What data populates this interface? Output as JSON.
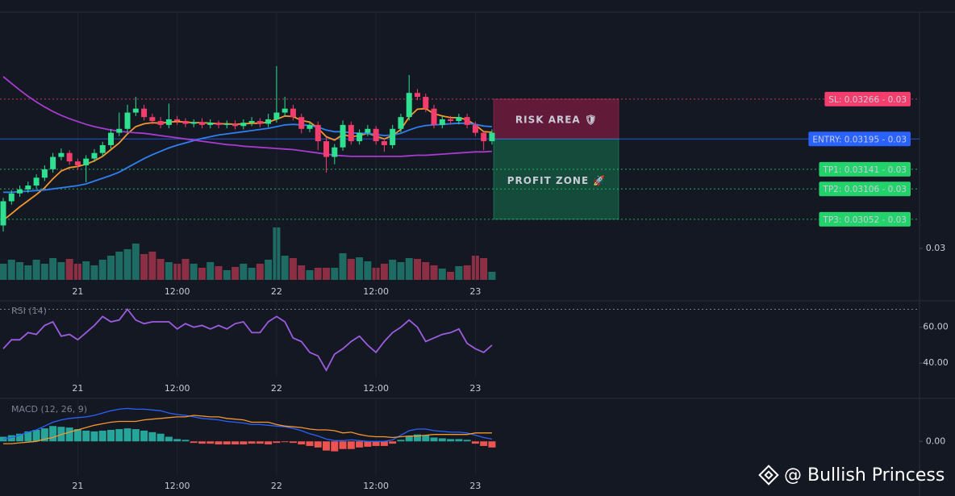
{
  "chart_data": [
    {
      "type": "candlestick",
      "categories": [
        null,
        null,
        null,
        null,
        null,
        null,
        null,
        null,
        null,
        "21",
        null,
        null,
        null,
        null,
        null,
        null,
        null,
        null,
        null,
        null,
        null,
        "12:00",
        null,
        null,
        null,
        null,
        null,
        null,
        null,
        null,
        null,
        null,
        null,
        "22",
        null,
        null,
        null,
        null,
        null,
        null,
        null,
        null,
        null,
        null,
        null,
        "12:00",
        null,
        null,
        null,
        null,
        null,
        null,
        null,
        null,
        null,
        null,
        null,
        "23",
        null,
        null
      ],
      "open": [
        0.03041,
        0.03084,
        0.03098,
        0.03105,
        0.03112,
        0.03126,
        0.03141,
        0.03163,
        0.0317,
        0.03155,
        0.03148,
        0.0316,
        0.0317,
        0.03184,
        0.03206,
        0.03213,
        0.03242,
        0.03249,
        0.03234,
        0.03227,
        0.0322,
        0.0323,
        0.03227,
        0.03222,
        0.03225,
        0.0322,
        0.03224,
        0.0322,
        0.03222,
        0.03218,
        0.03224,
        0.03227,
        0.03222,
        0.0323,
        0.03242,
        0.03249,
        0.03234,
        0.03213,
        0.0322,
        0.03191,
        0.03163,
        0.0318,
        0.0322,
        0.03191,
        0.03206,
        0.03213,
        0.03191,
        0.03184,
        0.03213,
        0.03234,
        0.03277,
        0.0327,
        0.03249,
        0.0322,
        0.0323,
        0.03227,
        0.03234,
        0.0322,
        0.03206,
        0.03191
      ],
      "high": [
        0.0309,
        0.03104,
        0.03112,
        0.03119,
        0.03132,
        0.03148,
        0.0317,
        0.03178,
        0.03175,
        0.0316,
        0.03166,
        0.03177,
        0.0319,
        0.03213,
        0.03242,
        0.03256,
        0.0327,
        0.03256,
        0.0324,
        0.03234,
        0.03258,
        0.03236,
        0.03232,
        0.0323,
        0.03232,
        0.0323,
        0.03228,
        0.03228,
        0.03228,
        0.0323,
        0.03234,
        0.03232,
        0.0324,
        0.03325,
        0.0327,
        0.03256,
        0.0324,
        0.03226,
        0.03226,
        0.03198,
        0.03186,
        0.03228,
        0.03226,
        0.03212,
        0.0322,
        0.03218,
        0.03196,
        0.0322,
        0.0324,
        0.03309,
        0.03284,
        0.03276,
        0.03256,
        0.03236,
        0.03236,
        0.0324,
        0.0324,
        0.03226,
        0.03208,
        0.03212
      ],
      "low": [
        0.0303,
        0.03078,
        0.03092,
        0.03099,
        0.03106,
        0.0312,
        0.03135,
        0.03157,
        0.03149,
        0.0314,
        0.03118,
        0.03154,
        0.03164,
        0.03178,
        0.032,
        0.03207,
        0.03236,
        0.03228,
        0.03221,
        0.03214,
        0.03214,
        0.0322,
        0.03216,
        0.03216,
        0.03214,
        0.03214,
        0.03214,
        0.03214,
        0.03212,
        0.03212,
        0.03218,
        0.03216,
        0.03216,
        0.03224,
        0.03236,
        0.03228,
        0.03205,
        0.03207,
        0.03175,
        0.03135,
        0.0315,
        0.03174,
        0.03185,
        0.03185,
        0.032,
        0.03185,
        0.03172,
        0.03178,
        0.03207,
        0.03228,
        0.03264,
        0.03243,
        0.03214,
        0.03214,
        0.03221,
        0.03221,
        0.03214,
        0.032,
        0.03175,
        0.03185
      ],
      "close": [
        0.03084,
        0.03098,
        0.03105,
        0.03112,
        0.03126,
        0.03141,
        0.03163,
        0.0317,
        0.03155,
        0.03148,
        0.0316,
        0.0317,
        0.03184,
        0.03206,
        0.03213,
        0.03242,
        0.03249,
        0.03234,
        0.03227,
        0.0322,
        0.0323,
        0.03227,
        0.03222,
        0.03225,
        0.0322,
        0.03224,
        0.0322,
        0.03222,
        0.03218,
        0.03224,
        0.03227,
        0.03222,
        0.0323,
        0.03242,
        0.03249,
        0.03234,
        0.03213,
        0.0322,
        0.03191,
        0.03163,
        0.0318,
        0.0322,
        0.03191,
        0.03206,
        0.03213,
        0.03191,
        0.03184,
        0.03213,
        0.03234,
        0.03277,
        0.0327,
        0.03249,
        0.0322,
        0.0323,
        0.03227,
        0.03234,
        0.0322,
        0.03206,
        0.03191,
        0.03206
      ],
      "up_color": "#2ee08f",
      "down_color": "#f23d6d",
      "overlays": [
        {
          "color": "#f5962f",
          "values": [
            0.0305,
            0.03062,
            0.03074,
            0.03085,
            0.03096,
            0.03108,
            0.03124,
            0.03138,
            0.03144,
            0.03146,
            0.0315,
            0.03156,
            0.03164,
            0.03176,
            0.03188,
            0.03204,
            0.03217,
            0.03222,
            0.03224,
            0.03223,
            0.03225,
            0.03226,
            0.03225,
            0.03224,
            0.03224,
            0.03223,
            0.03222,
            0.03222,
            0.03221,
            0.03222,
            0.03223,
            0.03223,
            0.03225,
            0.0323,
            0.03236,
            0.03235,
            0.03228,
            0.03225,
            0.03214,
            0.03199,
            0.03193,
            0.03203,
            0.03199,
            0.03201,
            0.03205,
            0.032,
            0.03195,
            0.03201,
            0.03212,
            0.03234,
            0.03248,
            0.03249,
            0.0324,
            0.03236,
            0.03233,
            0.03233,
            0.03229,
            0.0322,
            0.03208,
            0.03207
          ]
        },
        {
          "color": "#2f7ff0",
          "values": [
            0.031,
            0.031,
            0.03101,
            0.03102,
            0.03103,
            0.03104,
            0.03106,
            0.03108,
            0.0311,
            0.03112,
            0.03115,
            0.0312,
            0.03125,
            0.0313,
            0.03136,
            0.03144,
            0.03152,
            0.0316,
            0.03167,
            0.03173,
            0.03179,
            0.03184,
            0.03188,
            0.03192,
            0.03196,
            0.03199,
            0.03202,
            0.03204,
            0.03206,
            0.03208,
            0.0321,
            0.03212,
            0.03214,
            0.03217,
            0.0322,
            0.03221,
            0.0322,
            0.03219,
            0.03216,
            0.03211,
            0.03208,
            0.03208,
            0.03206,
            0.03205,
            0.03205,
            0.03203,
            0.03201,
            0.03202,
            0.03205,
            0.03211,
            0.03216,
            0.03219,
            0.0322,
            0.03221,
            0.03222,
            0.03223,
            0.03223,
            0.03221,
            0.03218,
            0.03217
          ]
        },
        {
          "color": "#a73bd0",
          "values": [
            0.03306,
            0.03294,
            0.03282,
            0.03271,
            0.03261,
            0.03252,
            0.03244,
            0.03237,
            0.03231,
            0.03226,
            0.03221,
            0.03217,
            0.03214,
            0.03211,
            0.03209,
            0.03207,
            0.03206,
            0.03205,
            0.03203,
            0.03201,
            0.03199,
            0.03197,
            0.03195,
            0.03193,
            0.03191,
            0.03189,
            0.03187,
            0.03185,
            0.03184,
            0.03182,
            0.03181,
            0.0318,
            0.03179,
            0.03178,
            0.03177,
            0.03176,
            0.03174,
            0.03172,
            0.0317,
            0.03168,
            0.03166,
            0.03165,
            0.03164,
            0.03164,
            0.03164,
            0.03164,
            0.03164,
            0.03164,
            0.03164,
            0.03165,
            0.03166,
            0.03166,
            0.03167,
            0.03168,
            0.03169,
            0.0317,
            0.03171,
            0.03172,
            0.03172,
            0.03173
          ]
        }
      ],
      "volume": {
        "up_color": "#1d6b63",
        "down_color": "#8c2f45",
        "values": [
          20,
          25,
          22,
          18,
          25,
          20,
          27,
          22,
          26,
          20,
          23,
          18,
          25,
          30,
          35,
          38,
          45,
          32,
          35,
          26,
          22,
          20,
          26,
          20,
          15,
          22,
          17,
          12,
          16,
          20,
          15,
          20,
          25,
          65,
          30,
          27,
          18,
          12,
          15,
          15,
          15,
          33,
          26,
          28,
          23,
          15,
          20,
          25,
          22,
          27,
          26,
          22,
          18,
          14,
          10,
          17,
          18,
          30,
          27,
          10
        ]
      },
      "ylim": [
        0.02944,
        0.03421
      ],
      "yticks": [
        0.03
      ],
      "levels": [
        {
          "label": "SL: 0.03266 - 0.03",
          "value": 0.03266,
          "color": "#f23d6d",
          "text_color": "#ffffff",
          "dashed": true
        },
        {
          "label": "ENTRY: 0.03195 - 0.03",
          "value": 0.03195,
          "color": "#2962ff",
          "text_color": "#ffffff",
          "dashed": false
        },
        {
          "label": "TP1: 0.03141 - 0.03",
          "value": 0.03141,
          "color": "#22d36b",
          "text_color": "#0b2a18",
          "dashed": true
        },
        {
          "label": "TP2: 0.03106 - 0.03",
          "value": 0.03106,
          "color": "#22d36b",
          "text_color": "#0b2a18",
          "dashed": true
        },
        {
          "label": "TP3: 0.03052 - 0.03",
          "value": 0.03052,
          "color": "#22d36b",
          "text_color": "#0b2a18",
          "dashed": true
        }
      ],
      "zones": [
        {
          "label": "RISK AREA 🛡",
          "from": 0.03195,
          "to": 0.03266,
          "color": "#f23d6d",
          "fill": "rgba(160,30,75,0.55)"
        },
        {
          "label": "PROFIT ZONE 🚀",
          "from": 0.03052,
          "to": 0.03195,
          "color": "#2ee08f",
          "fill": "rgba(20,110,75,0.6)"
        }
      ]
    },
    {
      "type": "line",
      "title": "RSI (14)",
      "categories": [
        null,
        null,
        null,
        null,
        null,
        null,
        null,
        null,
        null,
        "21",
        null,
        null,
        null,
        null,
        null,
        null,
        null,
        null,
        null,
        null,
        null,
        "12:00",
        null,
        null,
        null,
        null,
        null,
        null,
        null,
        null,
        null,
        null,
        null,
        "22",
        null,
        null,
        null,
        null,
        null,
        null,
        null,
        null,
        null,
        null,
        null,
        "12:00",
        null,
        null,
        null,
        null,
        null,
        null,
        null,
        null,
        null,
        null,
        null,
        "23",
        null,
        null
      ],
      "series": [
        {
          "color": "#9c5ce0",
          "values": [
            48,
            53,
            53,
            57,
            56,
            61,
            63,
            55,
            56,
            53,
            57,
            61,
            66,
            63,
            64,
            70,
            64,
            62,
            63,
            63,
            63,
            59,
            62,
            60,
            61,
            59,
            61,
            59,
            62,
            63,
            57,
            57,
            63,
            66,
            63,
            54,
            52,
            46,
            44,
            36,
            45,
            48,
            52,
            55,
            50,
            46,
            52,
            57,
            60,
            64,
            60,
            52,
            54,
            56,
            57,
            59,
            51,
            48,
            46,
            50
          ]
        }
      ],
      "ylim": [
        32,
        74.7
      ],
      "yticks": [
        {
          "value": 60,
          "label": "60.00"
        },
        {
          "value": 40,
          "label": "40.00"
        }
      ],
      "ref_lines": [
        70
      ]
    },
    {
      "type": "combo",
      "title": "MACD (12, 26, 9)",
      "categories": [
        null,
        null,
        null,
        null,
        null,
        null,
        null,
        null,
        null,
        "21",
        null,
        null,
        null,
        null,
        null,
        null,
        null,
        null,
        null,
        null,
        null,
        "12:00",
        null,
        null,
        null,
        null,
        null,
        null,
        null,
        null,
        null,
        null,
        null,
        "22",
        null,
        null,
        null,
        null,
        null,
        null,
        null,
        null,
        null,
        null,
        null,
        "12:00",
        null,
        null,
        null,
        null,
        null,
        null,
        null,
        null,
        null,
        null,
        null,
        "23",
        null,
        null
      ],
      "series": [
        {
          "type": "bar",
          "up_color": "#26a69a",
          "down_color": "#ef5350",
          "values": [
            6e-05,
            8e-05,
            0.0001,
            0.00013,
            0.00015,
            0.00017,
            0.0002,
            0.00019,
            0.00018,
            0.00016,
            0.00014,
            0.00013,
            0.00014,
            0.00015,
            0.00016,
            0.00017,
            0.00016,
            0.00014,
            0.00012,
            0.0001,
            6e-05,
            3e-05,
            2e-05,
            -2e-05,
            -3e-05,
            -3e-05,
            -4e-05,
            -4e-05,
            -4e-05,
            -4e-05,
            -3e-05,
            -3e-05,
            -4e-05,
            -2e-05,
            -1e-05,
            -2e-05,
            -4e-05,
            -6e-05,
            -8e-05,
            -0.00012,
            -0.00013,
            -0.0001,
            -0.0001,
            -8e-05,
            -7e-05,
            -6e-05,
            -6e-05,
            -3e-05,
            2e-05,
            7e-05,
            9e-05,
            8e-05,
            5e-05,
            4e-05,
            3e-05,
            3e-05,
            2e-05,
            -3e-05,
            -6e-05,
            -8e-05
          ]
        },
        {
          "type": "line",
          "color": "#2962ff",
          "values": [
            3e-05,
            5e-05,
            8e-05,
            0.00012,
            0.00015,
            0.0002,
            0.00025,
            0.00028,
            0.0003,
            0.00031,
            0.00032,
            0.00034,
            0.00037,
            0.0004,
            0.00042,
            0.00043,
            0.00042,
            0.00042,
            0.00041,
            0.0004,
            0.00037,
            0.00035,
            0.00034,
            0.00032,
            0.0003,
            0.00029,
            0.00028,
            0.00026,
            0.00025,
            0.00024,
            0.00022,
            0.00022,
            0.00021,
            0.0002,
            0.00019,
            0.00017,
            0.00014,
            0.0001,
            7e-05,
            3e-05,
            1e-05,
            1e-05,
            2e-05,
            1e-05,
            0,
            0,
            0,
            2e-05,
            8e-05,
            0.00014,
            0.00016,
            0.00016,
            0.00014,
            0.00013,
            0.00012,
            0.00012,
            0.00011,
            8e-05,
            5e-05,
            3e-05
          ]
        },
        {
          "type": "line",
          "color": "#f5962f",
          "values": [
            -3e-05,
            -3e-05,
            -2e-05,
            -1e-05,
            0,
            3e-05,
            5e-05,
            9e-05,
            0.00012,
            0.00015,
            0.00018,
            0.00021,
            0.00023,
            0.00025,
            0.00026,
            0.00026,
            0.00026,
            0.00028,
            0.00029,
            0.0003,
            0.00031,
            0.00032,
            0.00032,
            0.00034,
            0.00033,
            0.00032,
            0.00032,
            0.0003,
            0.00029,
            0.00028,
            0.00025,
            0.00025,
            0.00025,
            0.00022,
            0.0002,
            0.00019,
            0.00018,
            0.00016,
            0.00015,
            0.00015,
            0.00014,
            0.00011,
            0.00012,
            9e-05,
            7e-05,
            6e-05,
            6e-05,
            5e-05,
            6e-05,
            7e-05,
            7e-05,
            8e-05,
            9e-05,
            9e-05,
            9e-05,
            9e-05,
            9e-05,
            0.00011,
            0.00011,
            0.00011
          ]
        }
      ],
      "ylim": [
        -0.00045,
        0.00055
      ],
      "yticks": [
        {
          "value": 0,
          "label": "0.00"
        }
      ]
    }
  ],
  "watermark": "@ Bullish Princess"
}
